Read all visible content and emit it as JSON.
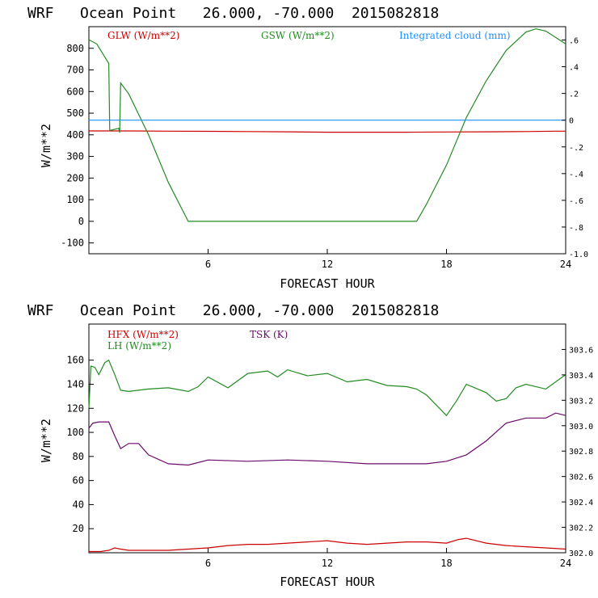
{
  "figure": {
    "background": "#ffffff",
    "axis_color": "#000000"
  },
  "chart_data": [
    {
      "type": "line",
      "title": "WRF   Ocean Point   26.000, -70.000  2015082818",
      "xlabel": "FORECAST HOUR",
      "ylabel": "W/m**2",
      "xlim": [
        0,
        24
      ],
      "ylim": [
        -150,
        900
      ],
      "y2lim": [
        -1.0,
        0.7
      ],
      "x_ticks": [
        6,
        12,
        18,
        24
      ],
      "y_ticks": [
        -100,
        0,
        100,
        200,
        300,
        400,
        500,
        600,
        700,
        800
      ],
      "y_ticks_right": [
        ".6",
        ".4",
        ".2",
        "0",
        "-.2",
        "-.4",
        "-.6",
        "-.8",
        "-1.0"
      ],
      "y2_tick_values": [
        0.6,
        0.4,
        0.2,
        0.0,
        -0.2,
        -0.4,
        -0.6,
        -0.8,
        -1.0
      ],
      "series": [
        {
          "name": "GLW (W/m**2)",
          "color": "#cc0000",
          "axis": "left",
          "x": [
            0,
            2,
            4,
            6,
            8,
            10,
            12,
            14,
            16,
            18,
            20,
            22,
            23.5,
            24
          ],
          "y": [
            418,
            418,
            417,
            416,
            415,
            414,
            412,
            412,
            412,
            413,
            414,
            415,
            417,
            417
          ]
        },
        {
          "name": "GSW (W/m**2)",
          "color": "#228b22",
          "axis": "left",
          "x": [
            0,
            0.4,
            1.0,
            1.05,
            1.5,
            1.55,
            1.6,
            2.0,
            3.0,
            4.0,
            5.0,
            6,
            8,
            10,
            12,
            14,
            16,
            16.5,
            17,
            18,
            19,
            20,
            21,
            22,
            22.5,
            23,
            24
          ],
          "y": [
            840,
            820,
            730,
            420,
            430,
            410,
            640,
            590,
            400,
            180,
            0,
            0,
            0,
            0,
            0,
            0,
            0,
            0,
            80,
            260,
            480,
            650,
            790,
            875,
            890,
            880,
            820
          ]
        },
        {
          "name": "Integrated cloud (mm)",
          "color": "#1e90ff",
          "axis": "right",
          "x": [
            0,
            24
          ],
          "y": [
            0.0,
            0.0
          ]
        }
      ]
    },
    {
      "type": "line",
      "title": "WRF   Ocean Point   26.000, -70.000  2015082818",
      "xlabel": "FORECAST HOUR",
      "ylabel": "W/m**2",
      "xlim": [
        0,
        24
      ],
      "ylim": [
        0,
        190
      ],
      "y2lim": [
        302.0,
        303.8
      ],
      "x_ticks": [
        6,
        12,
        18,
        24
      ],
      "y_ticks": [
        20,
        40,
        60,
        80,
        100,
        120,
        140,
        160
      ],
      "y_ticks_right": [
        "303.6",
        "303.4",
        "303.2",
        "303.0",
        "302.8",
        "302.6",
        "302.4",
        "302.2",
        "302.0"
      ],
      "y2_tick_values": [
        303.6,
        303.4,
        303.2,
        303.0,
        302.8,
        302.6,
        302.4,
        302.2,
        302.0
      ],
      "series": [
        {
          "name": "HFX (W/m**2)",
          "color": "#cc0000",
          "axis": "left",
          "x": [
            0,
            0.6,
            1.0,
            1.3,
            1.6,
            2,
            3,
            4,
            5,
            6,
            7,
            8,
            9,
            10,
            11,
            12,
            13,
            14,
            15,
            16,
            17,
            18,
            18.6,
            19,
            20,
            21,
            22,
            23,
            24
          ],
          "y": [
            1,
            1,
            2,
            4,
            3,
            2,
            2,
            2,
            3,
            4,
            6,
            7,
            7,
            8,
            9,
            10,
            8,
            7,
            8,
            9,
            9,
            8,
            11,
            12,
            8,
            6,
            5,
            4,
            3
          ]
        },
        {
          "name": "LH (W/m**2)",
          "color": "#228b22",
          "axis": "left",
          "x": [
            0,
            0.1,
            0.3,
            0.5,
            0.8,
            1.0,
            1.3,
            1.6,
            2,
            3,
            4,
            5,
            5.5,
            6,
            7,
            8,
            9,
            9.5,
            10,
            11,
            12,
            13,
            14,
            15,
            16,
            16.5,
            17,
            18,
            18.5,
            19,
            20,
            20.5,
            21,
            21.5,
            22,
            23,
            24
          ],
          "y": [
            120,
            155,
            154,
            148,
            158,
            160,
            148,
            135,
            134,
            136,
            137,
            134,
            138,
            146,
            137,
            149,
            151,
            146,
            152,
            147,
            149,
            142,
            144,
            139,
            138,
            136,
            131,
            114,
            126,
            140,
            133,
            126,
            128,
            137,
            140,
            136,
            148
          ]
        },
        {
          "name": "TSK (K)",
          "color": "#6a0a6a",
          "axis": "right",
          "x": [
            0,
            0.2,
            0.5,
            1.0,
            1.3,
            1.6,
            2,
            2.5,
            3,
            4,
            5,
            6,
            8,
            10,
            12,
            14,
            16,
            17,
            18,
            19,
            20,
            21,
            22,
            23,
            23.5,
            24
          ],
          "y": [
            302.98,
            303.02,
            303.03,
            303.03,
            302.92,
            302.82,
            302.86,
            302.86,
            302.77,
            302.7,
            302.69,
            302.73,
            302.72,
            302.73,
            302.72,
            302.7,
            302.7,
            302.7,
            302.72,
            302.77,
            302.88,
            303.02,
            303.06,
            303.06,
            303.1,
            303.08
          ]
        }
      ]
    }
  ]
}
